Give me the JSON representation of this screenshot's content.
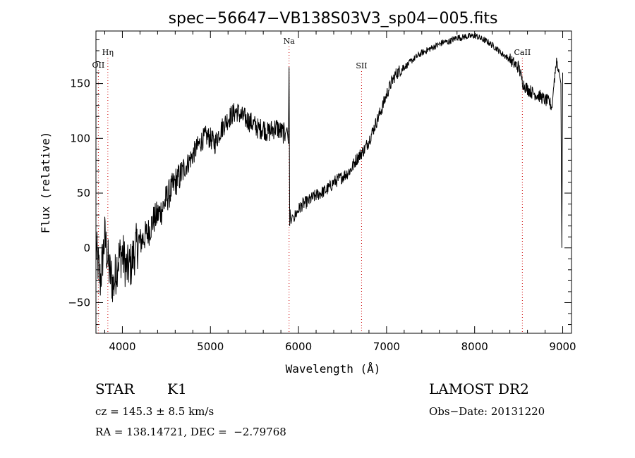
{
  "chart_data": {
    "type": "line",
    "title": "spec−56647−VB138S03V3_sp04−005.fits",
    "xlabel": "Wavelength (Å)",
    "ylabel": "Flux (relative)",
    "xlim": [
      3700,
      9100
    ],
    "ylim": [
      -78,
      198
    ],
    "xticks": [
      4000,
      5000,
      6000,
      7000,
      8000,
      9000
    ],
    "yticks": [
      -50,
      0,
      50,
      100,
      150
    ],
    "line_color": "#000000",
    "marker_color": "#cc0000",
    "spectrum": {
      "x": [
        3700,
        3750,
        3800,
        3850,
        3900,
        3950,
        4000,
        4050,
        4100,
        4150,
        4200,
        4250,
        4300,
        4350,
        4400,
        4450,
        4500,
        4550,
        4600,
        4650,
        4700,
        4750,
        4800,
        4850,
        4900,
        4950,
        5000,
        5050,
        5100,
        5150,
        5200,
        5250,
        5300,
        5350,
        5400,
        5450,
        5500,
        5550,
        5600,
        5650,
        5700,
        5750,
        5800,
        5850,
        5870,
        5885,
        5893,
        5900,
        5905,
        5915,
        5930,
        5950,
        6000,
        6050,
        6100,
        6150,
        6200,
        6250,
        6300,
        6350,
        6400,
        6450,
        6500,
        6550,
        6600,
        6650,
        6700,
        6750,
        6800,
        6850,
        6900,
        6950,
        7000,
        7050,
        7100,
        7150,
        7200,
        7250,
        7300,
        7350,
        7400,
        7450,
        7500,
        7550,
        7600,
        7650,
        7700,
        7750,
        7800,
        7850,
        7900,
        7950,
        8000,
        8050,
        8100,
        8150,
        8200,
        8250,
        8300,
        8350,
        8400,
        8450,
        8500,
        8550,
        8600,
        8650,
        8700,
        8750,
        8800,
        8850,
        8880,
        8900,
        8930,
        8960,
        8980,
        8990,
        9000
      ],
      "y": [
        0,
        -30,
        10,
        -20,
        -35,
        -10,
        -5,
        -20,
        -15,
        0,
        5,
        10,
        15,
        25,
        30,
        35,
        45,
        52,
        60,
        65,
        72,
        78,
        85,
        92,
        98,
        102,
        100,
        95,
        105,
        112,
        118,
        122,
        125,
        120,
        118,
        115,
        112,
        108,
        110,
        105,
        108,
        110,
        106,
        104,
        110,
        95,
        165,
        20,
        35,
        22,
        30,
        28,
        35,
        40,
        42,
        45,
        48,
        50,
        52,
        55,
        60,
        62,
        65,
        68,
        72,
        80,
        85,
        90,
        98,
        108,
        118,
        128,
        140,
        150,
        158,
        162,
        165,
        168,
        172,
        175,
        178,
        180,
        182,
        184,
        186,
        188,
        188,
        190,
        192,
        192,
        193,
        193,
        194,
        192,
        190,
        188,
        185,
        182,
        178,
        175,
        172,
        168,
        165,
        150,
        145,
        142,
        140,
        138,
        135,
        133,
        128,
        150,
        172,
        160,
        150,
        0,
        160
      ]
    },
    "lines": [
      {
        "label": "OII",
        "wavelength": 3727
      },
      {
        "label": "Hη",
        "wavelength": 3835
      },
      {
        "label": "Na",
        "wavelength": 5893
      },
      {
        "label": "SII",
        "wavelength": 6716
      },
      {
        "label": "CaII",
        "wavelength": 8542
      }
    ]
  },
  "info": {
    "class": "STAR",
    "subclass": "K1",
    "survey": "LAMOST DR2",
    "cz": "cz = 145.3 ± 8.5 km/s",
    "obs_date": "Obs−Date: 20131220",
    "radec": "RA = 138.14721, DEC =  −2.79768"
  }
}
